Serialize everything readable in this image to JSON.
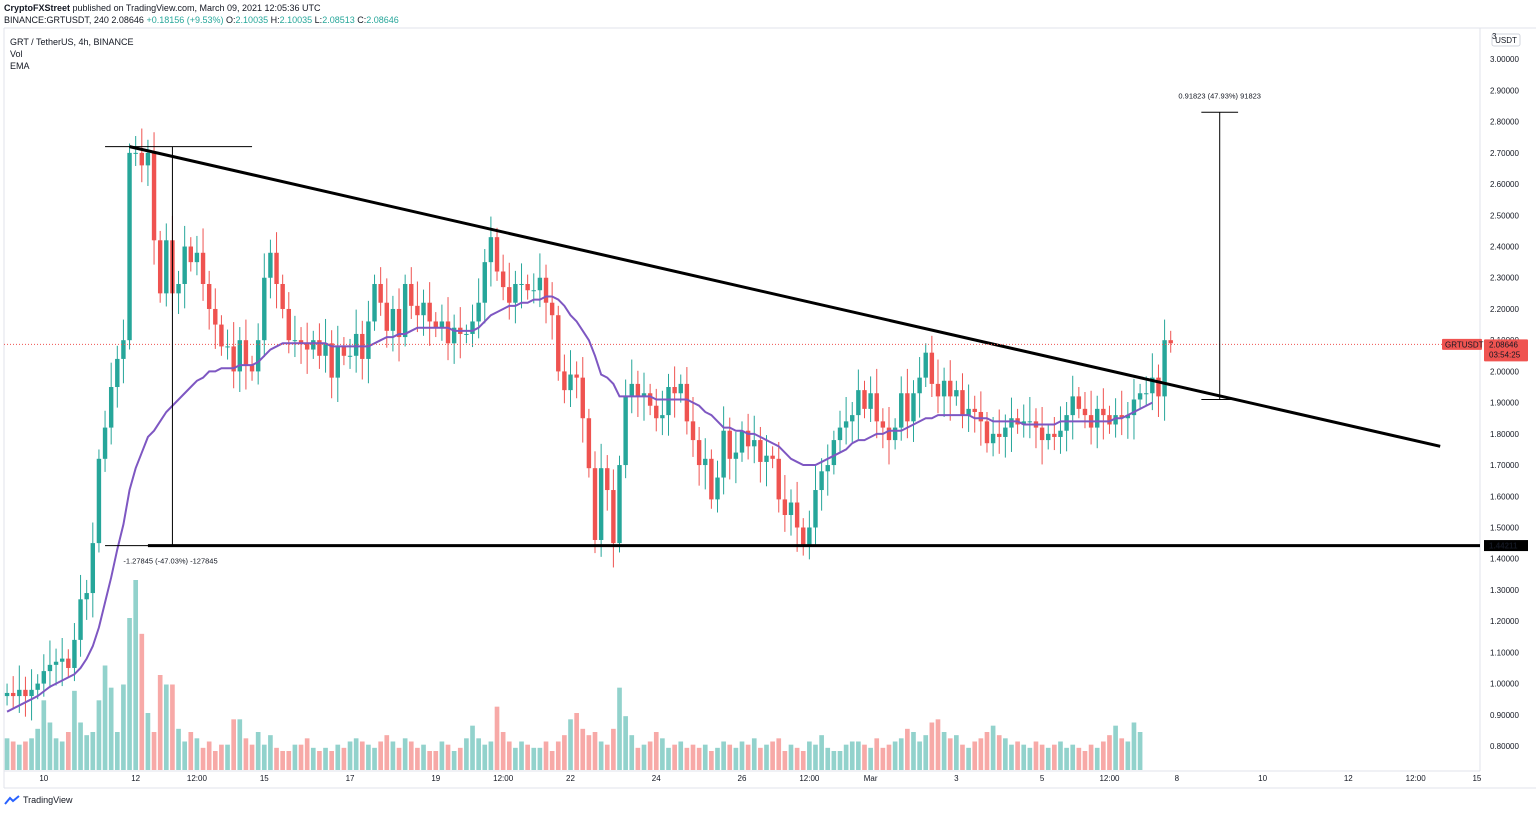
{
  "header": {
    "publisher": "CryptoFXStreet",
    "published_text": "published on TradingView.com, March 09, 2021 12:05:36 UTC",
    "symbol_line_prefix": "BINANCE:GRTUSDT, 240",
    "last_price": "2.08646",
    "change": "+0.18156 (+9.53%)",
    "o_label": "O:",
    "o_value": "2.10035",
    "h_label": "H:",
    "h_value": "2.10035",
    "l_label": "L:",
    "l_value": "2.08513",
    "c_label": "C:",
    "c_value": "2.08646"
  },
  "legend": {
    "title": "GRT / TetherUS, 4h, BINANCE",
    "vol": "Vol",
    "ema": "EMA"
  },
  "footer": {
    "brand": "TradingView"
  },
  "colors": {
    "up": "#26a69a",
    "down": "#ef5350",
    "ema": "#7e57c2",
    "label_bg": "#ef5350"
  },
  "chart_data": {
    "type": "candlestick",
    "title": "GRT / TetherUS, 4h, BINANCE",
    "currency": "USDT",
    "ylim": [
      0.72,
      3.1
    ],
    "y_ticks": [
      "0.80000",
      "0.90000",
      "1.00000",
      "1.10000",
      "1.20000",
      "1.30000",
      "1.40000",
      "1.50000",
      "1.60000",
      "1.70000",
      "1.80000",
      "1.90000",
      "2.00000",
      "2.10000",
      "2.20000",
      "2.30000",
      "2.40000",
      "2.50000",
      "2.60000",
      "2.70000",
      "2.80000",
      "2.90000",
      "3.00000"
    ],
    "y_tick_values": [
      0.8,
      0.9,
      1.0,
      1.1,
      1.2,
      1.3,
      1.4,
      1.5,
      1.6,
      1.7,
      1.8,
      1.9,
      2.0,
      2.1,
      2.2,
      2.3,
      2.4,
      2.5,
      2.6,
      2.7,
      2.8,
      2.9,
      3.0
    ],
    "x_ticks": [
      {
        "label": "10",
        "bar": 6
      },
      {
        "label": "12",
        "bar": 21
      },
      {
        "label": "12:00",
        "bar": 31
      },
      {
        "label": "15",
        "bar": 42
      },
      {
        "label": "17",
        "bar": 56
      },
      {
        "label": "19",
        "bar": 70
      },
      {
        "label": "12:00",
        "bar": 81
      },
      {
        "label": "22",
        "bar": 92
      },
      {
        "label": "24",
        "bar": 106
      },
      {
        "label": "26",
        "bar": 120
      },
      {
        "label": "12:00",
        "bar": 131
      },
      {
        "label": "Mar",
        "bar": 141
      },
      {
        "label": "3",
        "bar": 155
      },
      {
        "label": "5",
        "bar": 169
      },
      {
        "label": "12:00",
        "bar": 180
      },
      {
        "label": "8",
        "bar": 191
      },
      {
        "label": "10",
        "bar": 205
      },
      {
        "label": "12",
        "bar": 219
      },
      {
        "label": "12:00",
        "bar": 230
      },
      {
        "label": "15",
        "bar": 240
      }
    ],
    "bar_count_axis": 241,
    "candles": [
      [
        0.96,
        0.97,
        0.96,
        0.98,
        0.96,
        0.98,
        1.0,
        1.04,
        1.06,
        1.07,
        1.08,
        1.05,
        1.14,
        1.27,
        1.29,
        1.45,
        1.72,
        1.82,
        1.95,
        2.04,
        2.1,
        2.7,
        2.7,
        2.66,
        2.7,
        2.42,
        2.25,
        2.42,
        2.25,
        2.28,
        2.4,
        2.35,
        2.38,
        2.28,
        2.2,
        2.15,
        2.08,
        2.08,
        2.0,
        2.1,
        2.02,
        2.0,
        2.1,
        2.3,
        2.38,
        2.28,
        2.2,
        2.1,
        2.1,
        2.09,
        2.07,
        2.1,
        2.05,
        2.09,
        1.98,
        2.08,
        2.05,
        2.05,
        2.12,
        2.04,
        2.16,
        2.28,
        2.22,
        2.13,
        2.2,
        2.11,
        2.28,
        2.21,
        2.18,
        2.22,
        2.16,
        2.14,
        2.16,
        2.09,
        2.14,
        2.12,
        2.12,
        2.16,
        2.22,
        2.35,
        2.43,
        2.32,
        2.27,
        2.22,
        2.28,
        2.28,
        2.26,
        2.26,
        2.3,
        2.22,
        2.18,
        2.0,
        1.94,
        1.99,
        1.98,
        1.85,
        1.69,
        1.46,
        1.69,
        1.62,
        1.45,
        1.7,
        1.92,
        1.96,
        1.92,
        1.93,
        1.89,
        1.85,
        1.86,
        1.95,
        1.93,
        1.96,
        1.84,
        1.78,
        1.7,
        1.72,
        1.59,
        1.66,
        1.81,
        1.72,
        1.74,
        1.81,
        1.76,
        1.78,
        1.71,
        1.73,
        1.72,
        1.59,
        1.54,
        1.58,
        1.5,
        1.44,
        1.5,
        1.62,
        1.68,
        1.7,
        1.78,
        1.82,
        1.84,
        1.86,
        1.94,
        1.88,
        1.93,
        1.84,
        1.82,
        1.78,
        1.82,
        1.93,
        1.84,
        1.93,
        1.98,
        2.06,
        1.96,
        1.92,
        1.97,
        1.92,
        1.94,
        1.86,
        1.88,
        1.87,
        1.84,
        1.77,
        1.8,
        1.79,
        1.82,
        1.85,
        1.83,
        1.84,
        1.84,
        1.82,
        1.78,
        1.8,
        1.79,
        1.81,
        1.86,
        1.92,
        1.88,
        1.86,
        1.82,
        1.88,
        1.86,
        1.83,
        1.86,
        1.85,
        1.86,
        1.91,
        1.93,
        1.93,
        1.98,
        1.92,
        2.1
      ],
      [
        0.97,
        0.96,
        0.98,
        0.96,
        0.98,
        1.0,
        1.04,
        1.06,
        1.07,
        1.08,
        1.05,
        1.14,
        1.27,
        1.29,
        1.45,
        1.72,
        1.82,
        1.95,
        2.04,
        2.1,
        2.7,
        2.7,
        2.66,
        2.7,
        2.42,
        2.25,
        2.42,
        2.25,
        2.28,
        2.4,
        2.35,
        2.38,
        2.28,
        2.2,
        2.15,
        2.08,
        2.08,
        2.0,
        2.1,
        2.02,
        2.0,
        2.1,
        2.3,
        2.38,
        2.28,
        2.2,
        2.1,
        2.1,
        2.09,
        2.07,
        2.1,
        2.05,
        2.09,
        1.98,
        2.08,
        2.05,
        2.05,
        2.12,
        2.04,
        2.16,
        2.28,
        2.22,
        2.13,
        2.2,
        2.11,
        2.28,
        2.21,
        2.18,
        2.22,
        2.16,
        2.14,
        2.16,
        2.09,
        2.14,
        2.12,
        2.12,
        2.16,
        2.22,
        2.35,
        2.43,
        2.32,
        2.27,
        2.22,
        2.28,
        2.28,
        2.26,
        2.26,
        2.3,
        2.22,
        2.18,
        2.0,
        1.94,
        1.99,
        1.98,
        1.85,
        1.69,
        1.46,
        1.69,
        1.62,
        1.45,
        1.7,
        1.92,
        1.96,
        1.92,
        1.93,
        1.89,
        1.85,
        1.86,
        1.95,
        1.93,
        1.96,
        1.84,
        1.78,
        1.7,
        1.72,
        1.59,
        1.66,
        1.81,
        1.72,
        1.74,
        1.81,
        1.76,
        1.78,
        1.71,
        1.73,
        1.72,
        1.59,
        1.54,
        1.58,
        1.5,
        1.44,
        1.5,
        1.62,
        1.68,
        1.7,
        1.78,
        1.82,
        1.84,
        1.86,
        1.94,
        1.88,
        1.93,
        1.84,
        1.82,
        1.78,
        1.82,
        1.93,
        1.84,
        1.93,
        1.98,
        2.06,
        1.96,
        1.92,
        1.97,
        1.92,
        1.94,
        1.86,
        1.88,
        1.87,
        1.84,
        1.77,
        1.8,
        1.79,
        1.82,
        1.85,
        1.83,
        1.84,
        1.84,
        1.82,
        1.78,
        1.8,
        1.79,
        1.81,
        1.86,
        1.92,
        1.88,
        1.86,
        1.82,
        1.88,
        1.86,
        1.83,
        1.86,
        1.85,
        1.86,
        1.91,
        1.93,
        1.93,
        1.98,
        1.92,
        2.1,
        2.09
      ]
    ],
    "volume": [
      10,
      9,
      8,
      9,
      10,
      13,
      22,
      15,
      10,
      9,
      12,
      25,
      15,
      11,
      12,
      22,
      33,
      26,
      12,
      27,
      48,
      60,
      43,
      18,
      12,
      30,
      27,
      27,
      13,
      9,
      12,
      10,
      7,
      9,
      6,
      8,
      8,
      16,
      16,
      10,
      8,
      12,
      8,
      11,
      7,
      6,
      6,
      8,
      8,
      10,
      7,
      6,
      7,
      6,
      8,
      7,
      9,
      10,
      9,
      8,
      7,
      9,
      11,
      9,
      7,
      10,
      9,
      7,
      8,
      6,
      6,
      9,
      8,
      6,
      7,
      10,
      14,
      10,
      8,
      9,
      20,
      12,
      9,
      7,
      9,
      8,
      7,
      7,
      9,
      6,
      9,
      11,
      16,
      18,
      13,
      11,
      12,
      9,
      8,
      13,
      26,
      17,
      11,
      7,
      8,
      9,
      12,
      10,
      7,
      8,
      9,
      7,
      8,
      7,
      8,
      6,
      7,
      9,
      8,
      7,
      9,
      8,
      10,
      7,
      8,
      9,
      10,
      6,
      8,
      7,
      6,
      9,
      8,
      11,
      7,
      6,
      6,
      8,
      9,
      9,
      8,
      7,
      10,
      7,
      8,
      9,
      10,
      13,
      12,
      9,
      11,
      15,
      16,
      12,
      10,
      11,
      8,
      7,
      9,
      10,
      12,
      14,
      11,
      10,
      8,
      9,
      8,
      7,
      9,
      8,
      7,
      8,
      9,
      7,
      8,
      7,
      6,
      8,
      7,
      9,
      11,
      14,
      10,
      9,
      15,
      12
    ],
    "ema": [
      0.91,
      0.92,
      0.93,
      0.94,
      0.95,
      0.96,
      0.975,
      0.99,
      1.0,
      1.01,
      1.02,
      1.03,
      1.05,
      1.08,
      1.12,
      1.18,
      1.26,
      1.34,
      1.43,
      1.51,
      1.62,
      1.69,
      1.74,
      1.79,
      1.81,
      1.84,
      1.87,
      1.89,
      1.91,
      1.93,
      1.95,
      1.97,
      1.98,
      2.0,
      2.0,
      2.01,
      2.01,
      2.01,
      2.02,
      2.02,
      2.02,
      2.03,
      2.05,
      2.07,
      2.08,
      2.09,
      2.09,
      2.09,
      2.09,
      2.09,
      2.09,
      2.09,
      2.09,
      2.08,
      2.08,
      2.08,
      2.08,
      2.08,
      2.08,
      2.08,
      2.09,
      2.1,
      2.11,
      2.11,
      2.12,
      2.12,
      2.13,
      2.14,
      2.14,
      2.14,
      2.14,
      2.14,
      2.14,
      2.13,
      2.13,
      2.13,
      2.13,
      2.14,
      2.16,
      2.18,
      2.19,
      2.2,
      2.21,
      2.21,
      2.22,
      2.22,
      2.23,
      2.23,
      2.24,
      2.24,
      2.23,
      2.21,
      2.18,
      2.16,
      2.13,
      2.1,
      2.05,
      1.99,
      1.98,
      1.96,
      1.92,
      1.92,
      1.92,
      1.92,
      1.92,
      1.92,
      1.91,
      1.91,
      1.91,
      1.91,
      1.91,
      1.91,
      1.9,
      1.89,
      1.87,
      1.86,
      1.84,
      1.82,
      1.82,
      1.81,
      1.81,
      1.8,
      1.8,
      1.79,
      1.78,
      1.77,
      1.76,
      1.74,
      1.72,
      1.71,
      1.7,
      1.7,
      1.7,
      1.71,
      1.72,
      1.73,
      1.74,
      1.75,
      1.77,
      1.78,
      1.78,
      1.79,
      1.8,
      1.8,
      1.81,
      1.81,
      1.81,
      1.82,
      1.83,
      1.84,
      1.85,
      1.85,
      1.86,
      1.86,
      1.86,
      1.86,
      1.86,
      1.86,
      1.85,
      1.85,
      1.85,
      1.84,
      1.84,
      1.84,
      1.84,
      1.84,
      1.83,
      1.83,
      1.83,
      1.83,
      1.83,
      1.83,
      1.84,
      1.84,
      1.84,
      1.84,
      1.84,
      1.84,
      1.84,
      1.84,
      1.84,
      1.85,
      1.85,
      1.86,
      1.87,
      1.88,
      1.89,
      1.9
    ],
    "trendline": {
      "from": {
        "bar": 20,
        "price": 2.72
      },
      "to": {
        "bar": 234,
        "price": 1.76
      }
    },
    "support": {
      "price": 1.44211,
      "label": "1.44211"
    },
    "current": {
      "price": 2.08646,
      "symbol": "GRTUSDT",
      "price_label": "2.08646",
      "countdown": "03:54:25"
    },
    "measure_down": {
      "label": "-1.27845 (-47.03%) -127845"
    },
    "measure_up": {
      "label": "0.91823 (47.93%) 91823"
    },
    "top_tick_partial": "3"
  }
}
